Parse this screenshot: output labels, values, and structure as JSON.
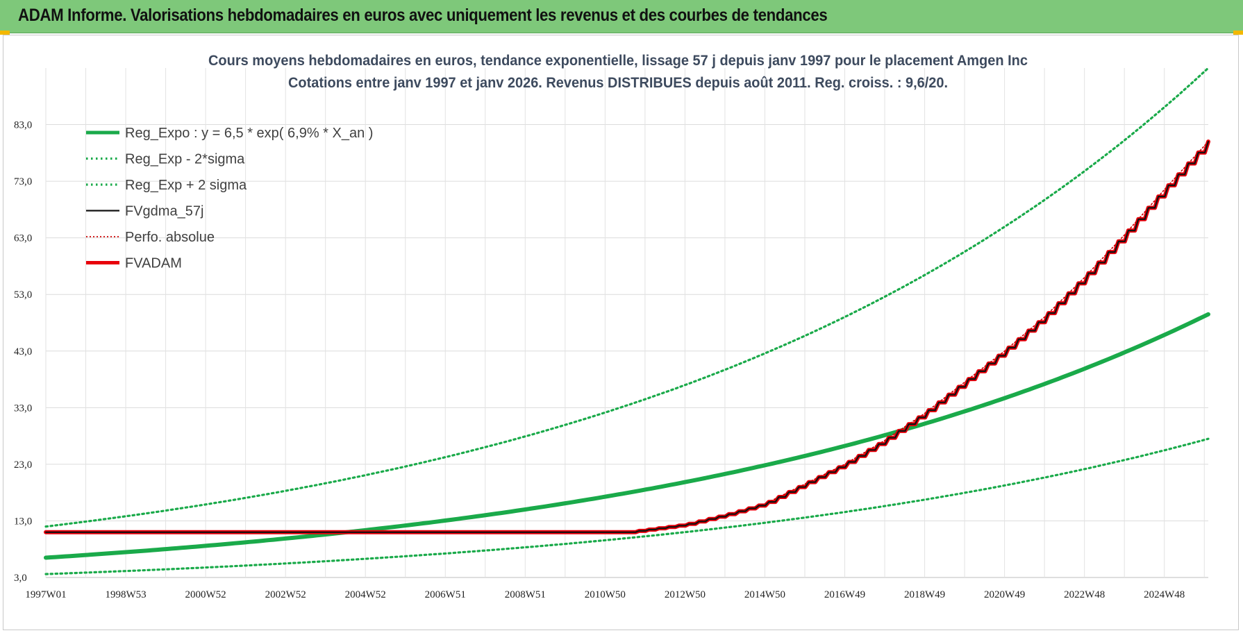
{
  "header": {
    "title": "ADAM Informe. Valorisations hebdomadaires en euros avec uniquement les revenus et des courbes de tendances"
  },
  "chart_data": {
    "type": "line",
    "title": "Cours moyens hebdomadaires en euros, tendance exponentielle, lissage 57 j depuis janv 1997  pour le placement Amgen Inc",
    "subtitle": "Cotations entre janv 1997 et janv 2026. Revenus DISTRIBUES depuis août 2011. Reg. croiss. : 9,6/20.",
    "xlabel": "",
    "ylabel": "",
    "x_range": [
      1997.0,
      2026.1
    ],
    "ylim": [
      3.0,
      93.0
    ],
    "y_ticks": [
      "3,0",
      "13,0",
      "23,0",
      "33,0",
      "43,0",
      "53,0",
      "63,0",
      "73,0",
      "83,0"
    ],
    "x_ticks": [
      {
        "label": "1997W01",
        "x": 1997.0
      },
      {
        "label": "1998W53",
        "x": 1999.0
      },
      {
        "label": "2000W52",
        "x": 2001.0
      },
      {
        "label": "2002W52",
        "x": 2003.0
      },
      {
        "label": "2004W52",
        "x": 2005.0
      },
      {
        "label": "2006W51",
        "x": 2007.0
      },
      {
        "label": "2008W51",
        "x": 2009.0
      },
      {
        "label": "2010W50",
        "x": 2011.0
      },
      {
        "label": "2012W50",
        "x": 2013.0
      },
      {
        "label": "2014W50",
        "x": 2015.0
      },
      {
        "label": "2016W49",
        "x": 2017.0
      },
      {
        "label": "2018W49",
        "x": 2019.0
      },
      {
        "label": "2020W49",
        "x": 2021.0
      },
      {
        "label": "2022W48",
        "x": 2023.0
      },
      {
        "label": "2024W48",
        "x": 2025.0
      }
    ],
    "grid": true,
    "legend_position": "top-left",
    "series": [
      {
        "name": "Reg_Expo : y = 6,5 * exp( 6,9% *  X_an )",
        "color": "#1aaa4a",
        "style": "solid-thick",
        "x": [
          1997.0,
          2000.0,
          2003.0,
          2006.0,
          2009.0,
          2012.0,
          2015.0,
          2018.0,
          2021.0,
          2024.0,
          2026.1
        ],
        "y": [
          6.5,
          8.0,
          9.8,
          12.3,
          15.0,
          18.3,
          22.9,
          28.6,
          35.0,
          43.0,
          49.5
        ]
      },
      {
        "name": "Reg_Exp - 2*sigma",
        "color": "#1aaa4a",
        "style": "dotted",
        "x": [
          1997.0,
          2000.0,
          2003.0,
          2006.0,
          2009.0,
          2012.0,
          2015.0,
          2018.0,
          2021.0,
          2024.0,
          2026.1
        ],
        "y": [
          3.6,
          4.5,
          5.5,
          6.8,
          8.3,
          10.3,
          12.9,
          15.8,
          19.4,
          24.0,
          27.5
        ]
      },
      {
        "name": "Reg_Exp + 2 sigma",
        "color": "#1aaa4a",
        "style": "dotted",
        "x": [
          1997.0,
          2000.0,
          2003.0,
          2006.0,
          2009.0,
          2012.0,
          2015.0,
          2018.0,
          2021.0,
          2024.0,
          2026.1
        ],
        "y": [
          12.0,
          15.0,
          18.8,
          23.2,
          28.3,
          34.9,
          43.0,
          53.0,
          66.0,
          82.0,
          93.0
        ]
      },
      {
        "name": "FVgdma_57j",
        "color": "#111111",
        "style": "solid",
        "x": [
          1997.0,
          2011.6,
          2013.0,
          2014.0,
          2015.0,
          2016.0,
          2017.0,
          2018.0,
          2019.0,
          2020.0,
          2021.0,
          2022.0,
          2023.0,
          2024.0,
          2025.0,
          2026.1
        ],
        "y": [
          11.0,
          11.0,
          12.3,
          14.0,
          16.0,
          19.5,
          23.0,
          27.2,
          32.0,
          37.5,
          43.0,
          49.0,
          56.0,
          63.5,
          71.5,
          80.0
        ]
      },
      {
        "name": "Perfo. absolue",
        "color": "#cc0000",
        "style": "dotted",
        "x": [
          1997.0,
          2011.6,
          2013.0,
          2014.0,
          2015.0,
          2016.0,
          2017.0,
          2018.0,
          2019.0,
          2020.0,
          2021.0,
          2022.0,
          2023.0,
          2024.0,
          2025.0,
          2026.1
        ],
        "y": [
          11.0,
          11.0,
          12.3,
          14.0,
          16.0,
          19.5,
          23.0,
          27.2,
          32.0,
          37.5,
          43.0,
          49.0,
          56.0,
          63.5,
          71.5,
          80.0
        ]
      },
      {
        "name": "FVADAM",
        "color": "#e8000b",
        "style": "solid-thick",
        "x": [
          1997.0,
          2011.6,
          2013.0,
          2014.0,
          2015.0,
          2016.0,
          2017.0,
          2018.0,
          2019.0,
          2020.0,
          2021.0,
          2022.0,
          2023.0,
          2024.0,
          2025.0,
          2026.1
        ],
        "y": [
          11.0,
          11.0,
          12.3,
          14.0,
          16.0,
          19.5,
          23.0,
          27.2,
          32.0,
          37.5,
          43.0,
          49.0,
          56.0,
          63.5,
          71.5,
          80.0
        ]
      }
    ]
  }
}
